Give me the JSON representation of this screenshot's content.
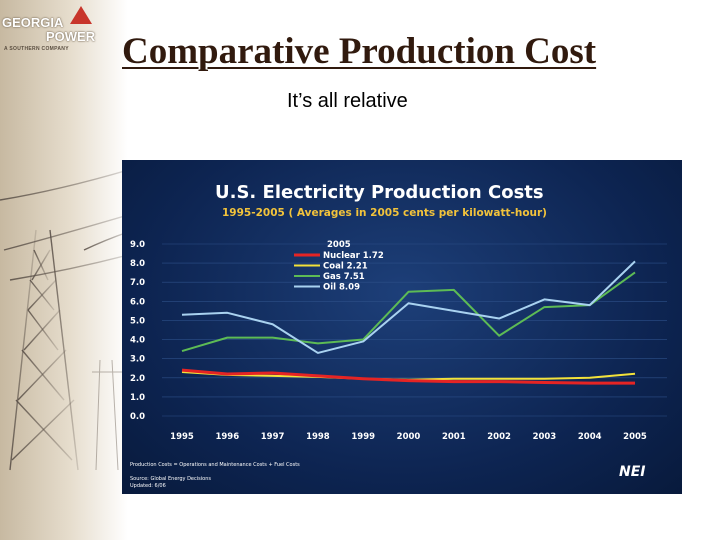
{
  "logo": {
    "line1": "GEORGIA",
    "line2": "POWER",
    "line3": "A SOUTHERN COMPANY"
  },
  "slide": {
    "title": "Comparative Production Cost",
    "subtitle": "It’s all relative"
  },
  "chart_data": {
    "type": "line",
    "title": "U.S. Electricity Production Costs",
    "subtitle": "1995-2005 ( Averages in 2005 cents per kilowatt-hour)",
    "x": [
      "1995",
      "1996",
      "1997",
      "1998",
      "1999",
      "2000",
      "2001",
      "2002",
      "2003",
      "2004",
      "2005"
    ],
    "y_ticks": [
      "9.0",
      "8.0",
      "7.0",
      "6.0",
      "5.0",
      "4.0",
      "3.0",
      "2.0",
      "1.0",
      "0.0"
    ],
    "ylim": [
      0,
      9
    ],
    "legend_title": "2005",
    "legend_position": "top-left",
    "series": [
      {
        "name": "Nuclear 1.72",
        "color": "#e52424",
        "values": [
          2.4,
          2.2,
          2.25,
          2.1,
          1.95,
          1.85,
          1.8,
          1.8,
          1.75,
          1.72,
          1.72
        ]
      },
      {
        "name": "Coal 2.21",
        "color": "#f3e23a",
        "values": [
          2.3,
          2.15,
          2.1,
          2.05,
          1.95,
          1.9,
          1.95,
          1.95,
          1.95,
          2.0,
          2.21
        ]
      },
      {
        "name": "Gas 7.51",
        "color": "#5dbb55",
        "values": [
          3.4,
          4.1,
          4.1,
          3.8,
          4.0,
          6.5,
          6.6,
          4.2,
          5.7,
          5.8,
          7.51
        ]
      },
      {
        "name": "Oil 8.09",
        "color": "#a9d2f0",
        "values": [
          5.3,
          5.4,
          4.8,
          3.3,
          3.9,
          5.9,
          5.5,
          5.1,
          6.1,
          5.8,
          8.09
        ]
      }
    ],
    "footnote": "Production Costs = Operations and Maintenance Costs + Fuel Costs",
    "source": "Source: Global Energy Decisions",
    "updated": "Updated: 6/06",
    "brand": "NEI"
  }
}
